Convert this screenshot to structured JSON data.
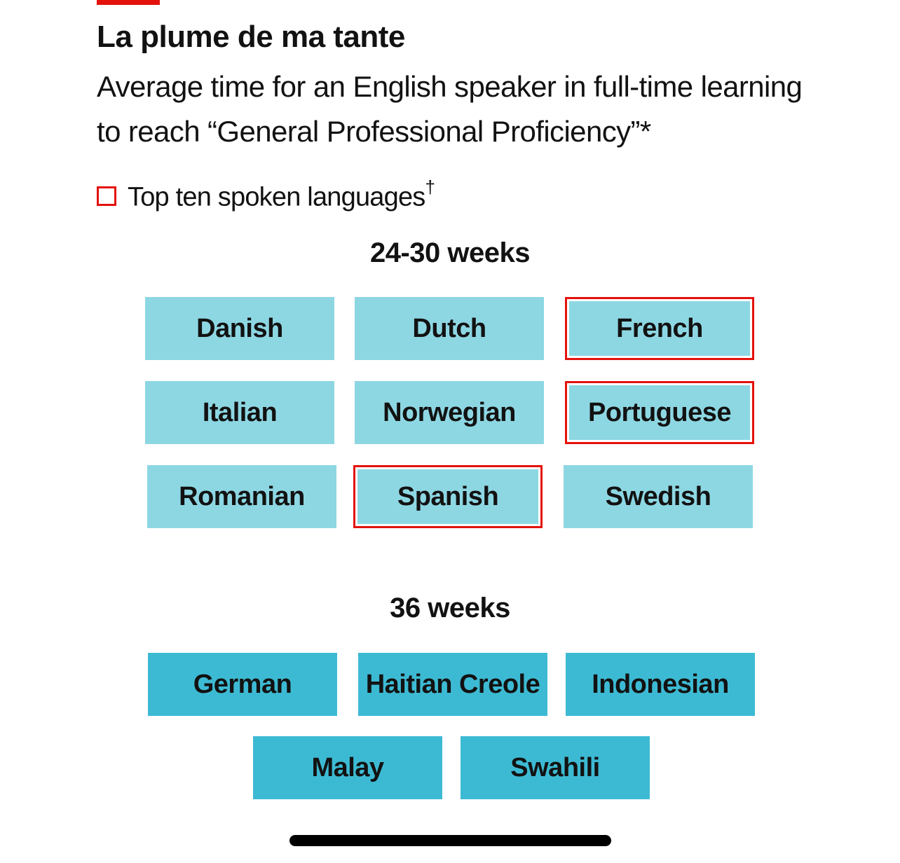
{
  "chart_data": {
    "type": "table",
    "title": "La plume de ma tante",
    "subtitle": "Average time for an English speaker in full-time learning to reach “General Professional Proficiency”*",
    "legend": {
      "label": "Top ten spoken languages",
      "marker": "†",
      "color": "#e3120b"
    },
    "groups": [
      {
        "heading": "24-30 weeks",
        "color": "#8dd7e3",
        "languages": [
          {
            "name": "Danish",
            "top_ten": false
          },
          {
            "name": "Dutch",
            "top_ten": false
          },
          {
            "name": "French",
            "top_ten": true
          },
          {
            "name": "Italian",
            "top_ten": false
          },
          {
            "name": "Norwegian",
            "top_ten": false
          },
          {
            "name": "Portuguese",
            "top_ten": true
          },
          {
            "name": "Romanian",
            "top_ten": false
          },
          {
            "name": "Spanish",
            "top_ten": true
          },
          {
            "name": "Swedish",
            "top_ten": false
          }
        ]
      },
      {
        "heading": "36 weeks",
        "color": "#3dbad3",
        "languages": [
          {
            "name": "German",
            "top_ten": false
          },
          {
            "name": "Haitian Creole",
            "top_ten": false
          },
          {
            "name": "Indonesian",
            "top_ten": false
          },
          {
            "name": "Malay",
            "top_ten": false
          },
          {
            "name": "Swahili",
            "top_ten": false
          }
        ]
      }
    ]
  },
  "colors": {
    "accent": "#e3120b",
    "light_tile": "#8dd7e3",
    "dark_tile": "#3dbad3"
  }
}
